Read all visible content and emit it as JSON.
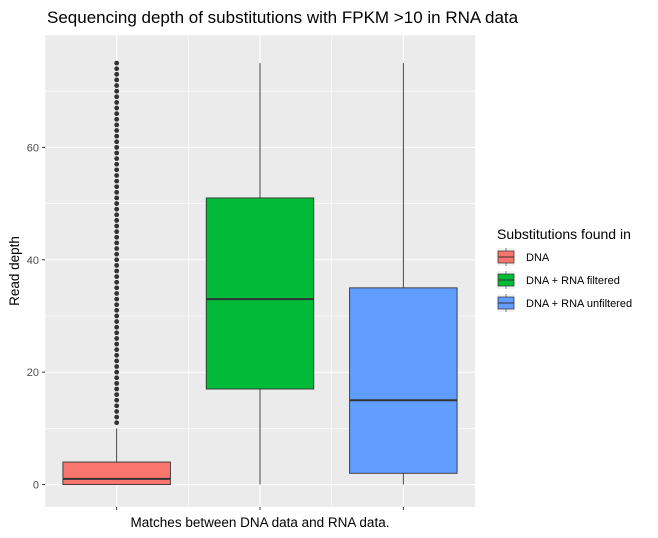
{
  "chart_data": {
    "type": "boxplot",
    "title": "Sequencing depth of substitutions with FPKM >10 in RNA data",
    "xlabel": "Matches between DNA data and RNA data.",
    "ylabel": "Read depth",
    "ylim": [
      -4,
      80
    ],
    "yticks": [
      0,
      20,
      40,
      60
    ],
    "grid": true,
    "legend": {
      "title": "Substitutions found in",
      "position": "right",
      "entries": [
        "DNA",
        "DNA + RNA filtered",
        "DNA + RNA unfiltered"
      ]
    },
    "series": [
      {
        "name": "DNA",
        "color": "#F8766D",
        "q1": 0,
        "median": 1,
        "q3": 4,
        "whisker_low": 0,
        "whisker_high": 10,
        "outliers": [
          11,
          12,
          13,
          14,
          15,
          16,
          17,
          18,
          19,
          20,
          21,
          22,
          23,
          24,
          25,
          26,
          27,
          28,
          29,
          30,
          31,
          32,
          33,
          34,
          35,
          36,
          37,
          38,
          39,
          40,
          41,
          42,
          43,
          44,
          45,
          46,
          47,
          48,
          49,
          50,
          51,
          52,
          53,
          54,
          55,
          56,
          57,
          58,
          59,
          60,
          61,
          62,
          63,
          64,
          65,
          66,
          67,
          68,
          69,
          70,
          71,
          72,
          73,
          74,
          75
        ]
      },
      {
        "name": "DNA + RNA filtered",
        "color": "#00BA38",
        "q1": 17,
        "median": 33,
        "q3": 51,
        "whisker_low": 0,
        "whisker_high": 75,
        "outliers": []
      },
      {
        "name": "DNA + RNA unfiltered",
        "color": "#619CFF",
        "q1": 2,
        "median": 15,
        "q3": 35,
        "whisker_low": 0,
        "whisker_high": 75,
        "outliers": []
      }
    ]
  }
}
